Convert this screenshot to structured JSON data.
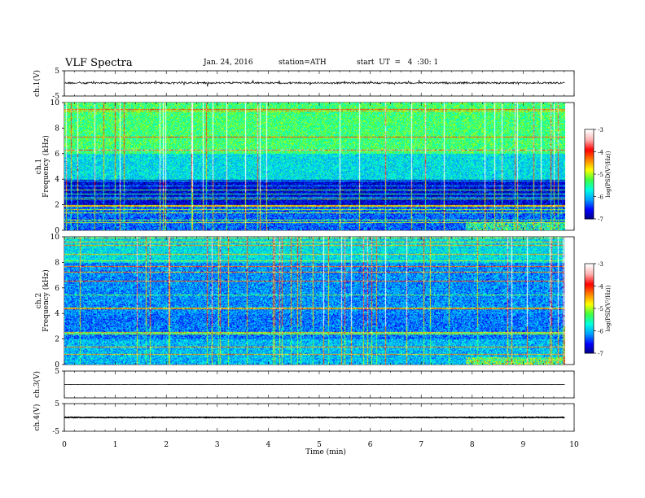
{
  "header": {
    "title": "VLF  Spectra",
    "date": "Jan. 24, 2016",
    "station": "station=ATH",
    "start": "start  UT  =   4  :30: 1"
  },
  "chart_data": {
    "type": "heatmap",
    "title": "VLF  Spectra",
    "xlabel": "Time  (min)",
    "xlim": [
      0,
      10
    ],
    "xticks": [
      "0",
      "1",
      "2",
      "3",
      "4",
      "5",
      "6",
      "7",
      "8",
      "9",
      "10"
    ],
    "panels": [
      {
        "kind": "waveform",
        "ylabel": "ch.1(V)",
        "ylim": [
          -5,
          5
        ],
        "yticks": [
          "5",
          "-5"
        ],
        "baseline": 0.2
      },
      {
        "kind": "spectrogram",
        "ylabel1": "ch.1",
        "ylabel2": "Frequency  (kHz)",
        "ylim": [
          0,
          10
        ],
        "yticks": [
          "0",
          "2",
          "4",
          "6",
          "8",
          "10"
        ]
      },
      {
        "kind": "spectrogram",
        "ylabel1": "ch.2",
        "ylabel2": "Frequency  (kHz)",
        "ylim": [
          0,
          10
        ],
        "yticks": [
          "0",
          "2",
          "4",
          "6",
          "8",
          "10"
        ]
      },
      {
        "kind": "waveform",
        "ylabel": "ch.3(V)",
        "ylim": [
          -5,
          5
        ],
        "yticks": [
          "5"
        ],
        "baseline": 0.0
      },
      {
        "kind": "waveform",
        "ylabel": "ch.4(V)",
        "ylim": [
          -5,
          5
        ],
        "yticks": [
          "5",
          "-5"
        ],
        "baseline": 0.0
      }
    ],
    "colorbar": {
      "label": "log(PSD(V²/Hz))",
      "range": [
        -7,
        -3
      ],
      "ticks": [
        "-3",
        "-4",
        "-5",
        "-6",
        "-7"
      ],
      "colors": [
        "#000080",
        "#0000ff",
        "#00a0ff",
        "#00ffe0",
        "#40ff40",
        "#ffff00",
        "#ff8000",
        "#ff0000",
        "#ffb0b0",
        "#ffffff"
      ]
    }
  }
}
